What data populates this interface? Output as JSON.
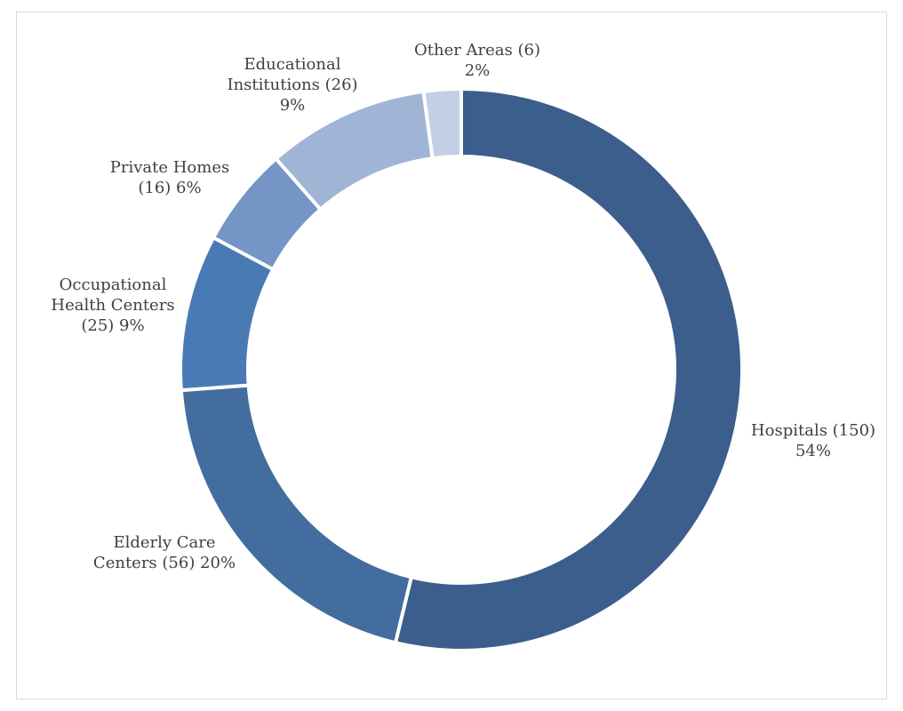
{
  "chart_data": {
    "type": "pie",
    "style": "donut",
    "start_angle": "12 o'clock",
    "direction": "clockwise",
    "legend": "none",
    "slices": [
      {
        "name": "Hospitals",
        "value": 150,
        "percent": 54,
        "color": "#3b5e8c",
        "label_lines": [
          "Hospitals (150)",
          "54%"
        ]
      },
      {
        "name": "Elderly Care Centers",
        "value": 56,
        "percent": 20,
        "color": "#436d9f",
        "label_lines": [
          "Elderly Care",
          "Centers (56) 20%"
        ]
      },
      {
        "name": "Occupational Health Centers",
        "value": 25,
        "percent": 9,
        "color": "#4a7ab4",
        "label_lines": [
          "Occupational",
          "Health Centers",
          "(25) 9%"
        ]
      },
      {
        "name": "Private Homes",
        "value": 16,
        "percent": 6,
        "color": "#7595c6",
        "label_lines": [
          "Private Homes",
          "(16) 6%"
        ]
      },
      {
        "name": "Educational Institutions",
        "value": 26,
        "percent": 9,
        "color": "#a0b4d6",
        "label_lines": [
          "Educational",
          "Institutions (26)",
          "9%"
        ]
      },
      {
        "name": "Other Areas",
        "value": 6,
        "percent": 2,
        "color": "#c3cfe4",
        "label_lines": [
          "Other Areas (6)",
          "2%"
        ]
      }
    ]
  }
}
